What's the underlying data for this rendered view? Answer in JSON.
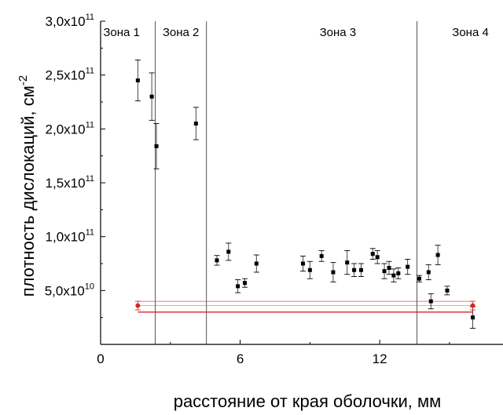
{
  "chart_data": {
    "type": "scatter",
    "xlabel": "расстояние от края оболочки, мм",
    "ylabel": "плотность дислокаций, см",
    "ylabel_superscript": "-2",
    "xlim": [
      0,
      17.3
    ],
    "ylim": [
      0,
      300000000000.0
    ],
    "xticks": [
      {
        "value": 0,
        "label": "0"
      },
      {
        "value": 6,
        "label": "6"
      },
      {
        "value": 12,
        "label": "12"
      }
    ],
    "yticks": [
      {
        "value": 50000000000.0,
        "mantissa": "5,0x10",
        "exponent": "10"
      },
      {
        "value": 100000000000.0,
        "mantissa": "1,0x10",
        "exponent": "11"
      },
      {
        "value": 150000000000.0,
        "mantissa": "1,5x10",
        "exponent": "11"
      },
      {
        "value": 200000000000.0,
        "mantissa": "2,0x10",
        "exponent": "11"
      },
      {
        "value": 250000000000.0,
        "mantissa": "2,5x10",
        "exponent": "11"
      },
      {
        "value": 300000000000.0,
        "mantissa": "3,0x10",
        "exponent": "11"
      }
    ],
    "zone_boundaries": [
      2.35,
      4.55,
      13.6
    ],
    "zones": [
      {
        "label": "Зона 1",
        "x": 0.9
      },
      {
        "label": "Зона 2",
        "x": 3.45
      },
      {
        "label": "Зона 3",
        "x": 10.2
      },
      {
        "label": "Зона 4",
        "x": 15.9
      }
    ],
    "series": [
      {
        "color": "#000000",
        "points": [
          {
            "x": 1.6,
            "y": 245000000000.0,
            "err": 19000000000.0
          },
          {
            "x": 2.2,
            "y": 230000000000.0,
            "err": 22000000000.0
          },
          {
            "x": 2.4,
            "y": 184000000000.0,
            "err": 21000000000.0
          },
          {
            "x": 4.1,
            "y": 205000000000.0,
            "err": 15000000000.0
          },
          {
            "x": 5.0,
            "y": 78000000000.0,
            "err": 4500000000.0
          },
          {
            "x": 5.5,
            "y": 86000000000.0,
            "err": 8000000000.0
          },
          {
            "x": 5.9,
            "y": 54000000000.0,
            "err": 6000000000.0
          },
          {
            "x": 6.2,
            "y": 57000000000.0,
            "err": 4000000000.0
          },
          {
            "x": 6.7,
            "y": 75000000000.0,
            "err": 8000000000.0
          },
          {
            "x": 8.7,
            "y": 75000000000.0,
            "err": 7000000000.0
          },
          {
            "x": 9.0,
            "y": 69000000000.0,
            "err": 8000000000.0
          },
          {
            "x": 9.5,
            "y": 82000000000.0,
            "err": 5000000000.0
          },
          {
            "x": 10.0,
            "y": 67000000000.0,
            "err": 9000000000.0
          },
          {
            "x": 10.6,
            "y": 76000000000.0,
            "err": 11000000000.0
          },
          {
            "x": 10.9,
            "y": 69000000000.0,
            "err": 6000000000.0
          },
          {
            "x": 11.2,
            "y": 69000000000.0,
            "err": 6000000000.0
          },
          {
            "x": 11.7,
            "y": 84000000000.0,
            "err": 5000000000.0
          },
          {
            "x": 11.9,
            "y": 81000000000.0,
            "err": 6000000000.0
          },
          {
            "x": 12.2,
            "y": 68000000000.0,
            "err": 7000000000.0
          },
          {
            "x": 12.4,
            "y": 71000000000.0,
            "err": 6000000000.0
          },
          {
            "x": 12.6,
            "y": 64000000000.0,
            "err": 6000000000.0
          },
          {
            "x": 12.8,
            "y": 66000000000.0,
            "err": 5000000000.0
          },
          {
            "x": 13.2,
            "y": 72000000000.0,
            "err": 7000000000.0
          },
          {
            "x": 13.7,
            "y": 61000000000.0,
            "err": 3000000000.0
          },
          {
            "x": 14.1,
            "y": 67000000000.0,
            "err": 7000000000.0
          },
          {
            "x": 14.2,
            "y": 40000000000.0,
            "err": 7000000000.0
          },
          {
            "x": 14.5,
            "y": 83000000000.0,
            "err": 9000000000.0
          },
          {
            "x": 14.9,
            "y": 50000000000.0,
            "err": 4000000000.0
          },
          {
            "x": 16.0,
            "y": 25000000000.0,
            "err": 10000000000.0
          }
        ]
      },
      {
        "color": "#e02020",
        "points": [
          {
            "x": 1.6,
            "y": 36000000000.0,
            "err": 4000000000.0
          },
          {
            "x": 16.0,
            "y": 36000000000.0,
            "err": 4000000000.0
          }
        ],
        "band": {
          "x": [
            1.6,
            16.0
          ],
          "center": 36000000000.0,
          "lower": 30000000000.0,
          "upper": 40000000000.0
        }
      }
    ],
    "grid": false,
    "colors": {
      "axis": "#000000",
      "zone_line": "#555555",
      "band": "#e02020"
    }
  }
}
